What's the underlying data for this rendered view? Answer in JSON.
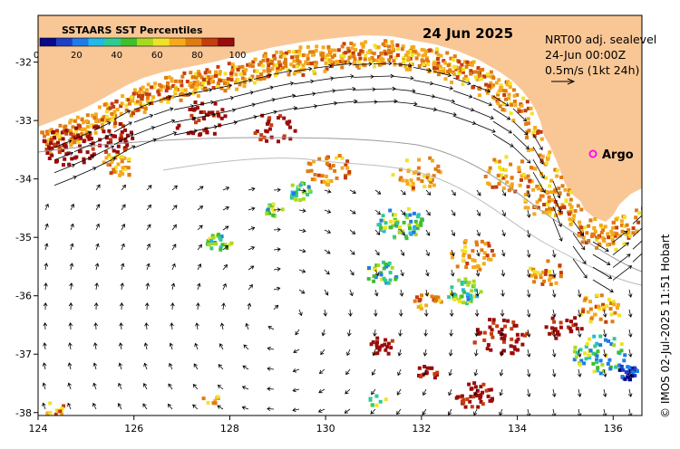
{
  "map": {
    "date": "24 Jun 2025",
    "colorbar_title": "SSTAARS SST Percentiles",
    "colorbar_ticks": [
      "0",
      "20",
      "40",
      "60",
      "80",
      "100"
    ],
    "colorbar_colors": [
      "#08088a",
      "#1c3fc8",
      "#1f7be6",
      "#21b9e6",
      "#2ecc8f",
      "#3fbf2a",
      "#a7d91f",
      "#f1e226",
      "#f5a91c",
      "#e07b12",
      "#c43d0e",
      "#9b0b0b"
    ],
    "info_lines": [
      "NRT00 adj. sealevel",
      "24-Jun 00:00Z",
      "0.5m/s (1kt 24h)"
    ],
    "argo_label": "Argo",
    "copyright": "© IMOS 02-Jul-2025 11:51 Hobart",
    "x_ticks": [
      "124",
      "126",
      "128",
      "130",
      "132",
      "134",
      "136"
    ],
    "y_ticks": [
      "-32",
      "-33",
      "-34",
      "-35",
      "-36",
      "-37",
      "-38"
    ],
    "land_color": "#f9c796",
    "argo_color": "#ff00ff"
  }
}
